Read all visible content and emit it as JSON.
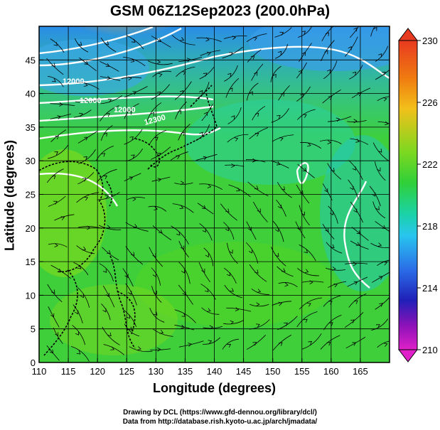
{
  "title": "GSM 06Z12Sep2023 (200.0hPa)",
  "xlabel": "Longitude (degrees)",
  "ylabel": "Latitude  (degrees)",
  "credits": [
    "Drawing by DCL (https://www.gfd-dennou.org/library/dcl/)",
    "Data from http://database.rish.kyoto-u.ac.jp/arch/jmadata/"
  ],
  "map": {
    "lon_range": [
      110,
      170
    ],
    "lat_range": [
      0,
      50
    ],
    "lon_ticks": [
      "110",
      "115",
      "120",
      "125",
      "130",
      "135",
      "140",
      "145",
      "150",
      "155",
      "160",
      "165"
    ],
    "lat_ticks": [
      "0",
      "5",
      "10",
      "15",
      "20",
      "25",
      "30",
      "35",
      "40",
      "45"
    ],
    "contour_labels": [
      "12000",
      "12000",
      "12000",
      "12300"
    ]
  },
  "colorbar": {
    "ticks": [
      "230",
      "226",
      "222",
      "218",
      "214",
      "210"
    ],
    "colors": [
      "#e83a20",
      "#f07a10",
      "#f2c01a",
      "#7dd820",
      "#2fd038",
      "#1bd2a6",
      "#28c6ee",
      "#2a6ee8",
      "#2020b8",
      "#8a12b8",
      "#e020c8"
    ]
  }
}
